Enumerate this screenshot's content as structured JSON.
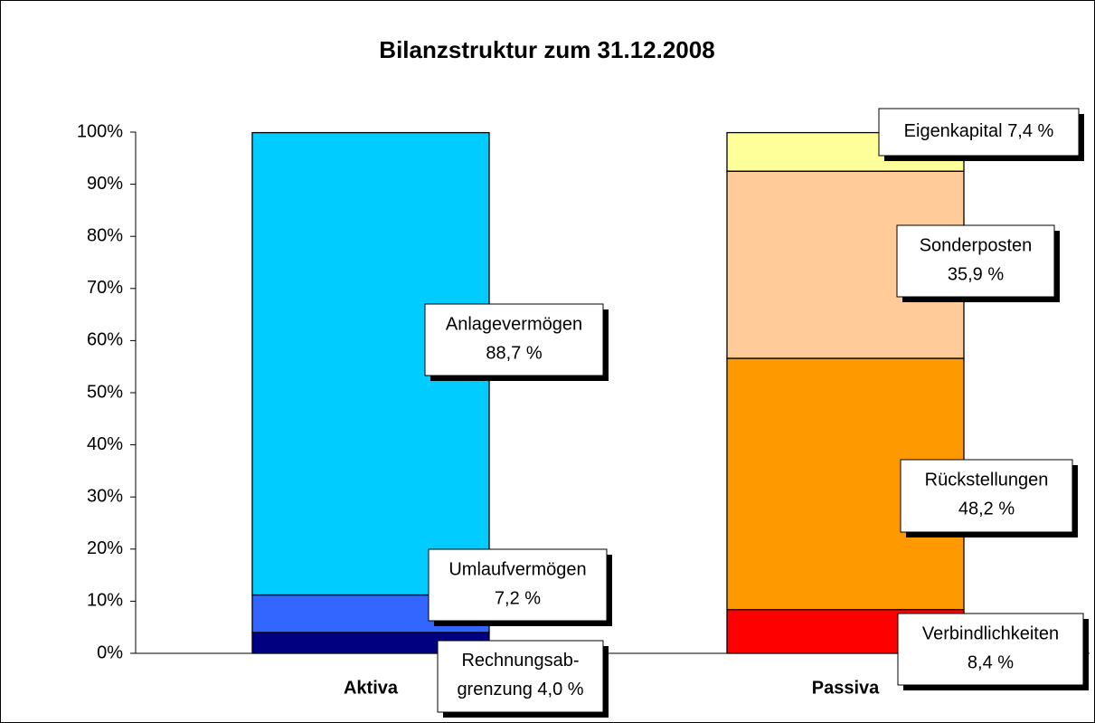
{
  "chart_data": {
    "type": "stacked_bar",
    "title": "Bilanzstruktur zum 31.12.2008",
    "categories": [
      "Aktiva",
      "Passiva"
    ],
    "ylim": [
      0,
      100
    ],
    "yticks": [
      {
        "value": 0,
        "label": "0%"
      },
      {
        "value": 10,
        "label": "10%"
      },
      {
        "value": 20,
        "label": "20%"
      },
      {
        "value": 30,
        "label": "30%"
      },
      {
        "value": 40,
        "label": "40%"
      },
      {
        "value": 50,
        "label": "50%"
      },
      {
        "value": 60,
        "label": "60%"
      },
      {
        "value": 70,
        "label": "70%"
      },
      {
        "value": 80,
        "label": "80%"
      },
      {
        "value": 90,
        "label": "90%"
      },
      {
        "value": 100,
        "label": "100%"
      }
    ],
    "series": [
      {
        "name": "Rechnungsab-grenzung",
        "color": "#000080",
        "values": [
          4.0,
          null
        ],
        "value_labels": [
          "4,0 %",
          null
        ]
      },
      {
        "name": "Umlaufvermögen",
        "color": "#3366ff",
        "values": [
          7.2,
          null
        ],
        "value_labels": [
          "7,2 %",
          null
        ]
      },
      {
        "name": "Anlagevermögen",
        "color": "#00ccff",
        "values": [
          88.7,
          null
        ],
        "value_labels": [
          "88,7 %",
          null
        ]
      },
      {
        "name": "Verbindlichkeiten",
        "color": "#ff0000",
        "values": [
          null,
          8.4
        ],
        "value_labels": [
          null,
          "8,4 %"
        ]
      },
      {
        "name": "Rückstellungen",
        "color": "#ff9900",
        "values": [
          null,
          48.2
        ],
        "value_labels": [
          null,
          "48,2 %"
        ]
      },
      {
        "name": "Sonderposten",
        "color": "#ffcc99",
        "values": [
          null,
          35.9
        ],
        "value_labels": [
          null,
          "35,9 %"
        ]
      },
      {
        "name": "Eigenkapital",
        "color": "#ffff99",
        "values": [
          null,
          7.4
        ],
        "value_labels": [
          null,
          "7,4 %"
        ]
      }
    ]
  }
}
